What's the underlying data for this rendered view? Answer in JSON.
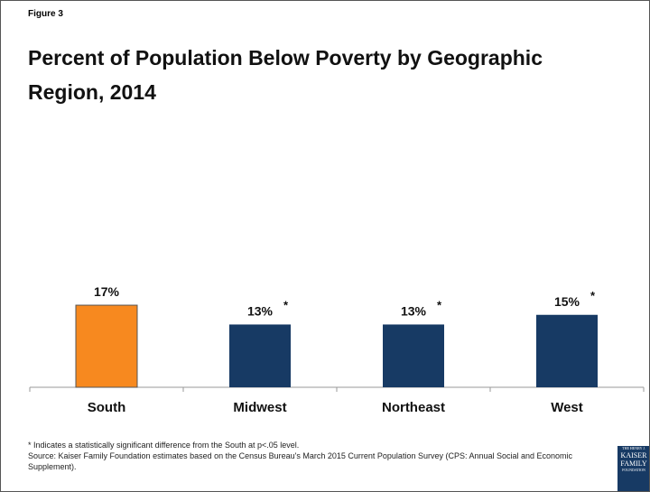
{
  "chart_data": {
    "type": "bar",
    "figure_label": "Figure 3",
    "title": "Percent of Population Below Poverty by Geographic Region, 2014",
    "categories": [
      "South",
      "Midwest",
      "Northeast",
      "West"
    ],
    "values": [
      17,
      13,
      13,
      15
    ],
    "value_labels": [
      "17%",
      "13%",
      "13%",
      "15%"
    ],
    "significance_marks": [
      null,
      "*",
      "*",
      "*"
    ],
    "colors": [
      "#f7891f",
      "#173a64",
      "#173a64",
      "#173a64"
    ],
    "footnote": "* Indicates a statistically significant difference from the South at p<.05 level.",
    "source": "Source: Kaiser Family Foundation estimates based on the Census Bureau's March 2015 Current Population Survey (CPS: Annual Social and Economic Supplement).",
    "logo": [
      "THE HENRY J.",
      "KAISER",
      "FAMILY",
      "FOUNDATION"
    ]
  }
}
